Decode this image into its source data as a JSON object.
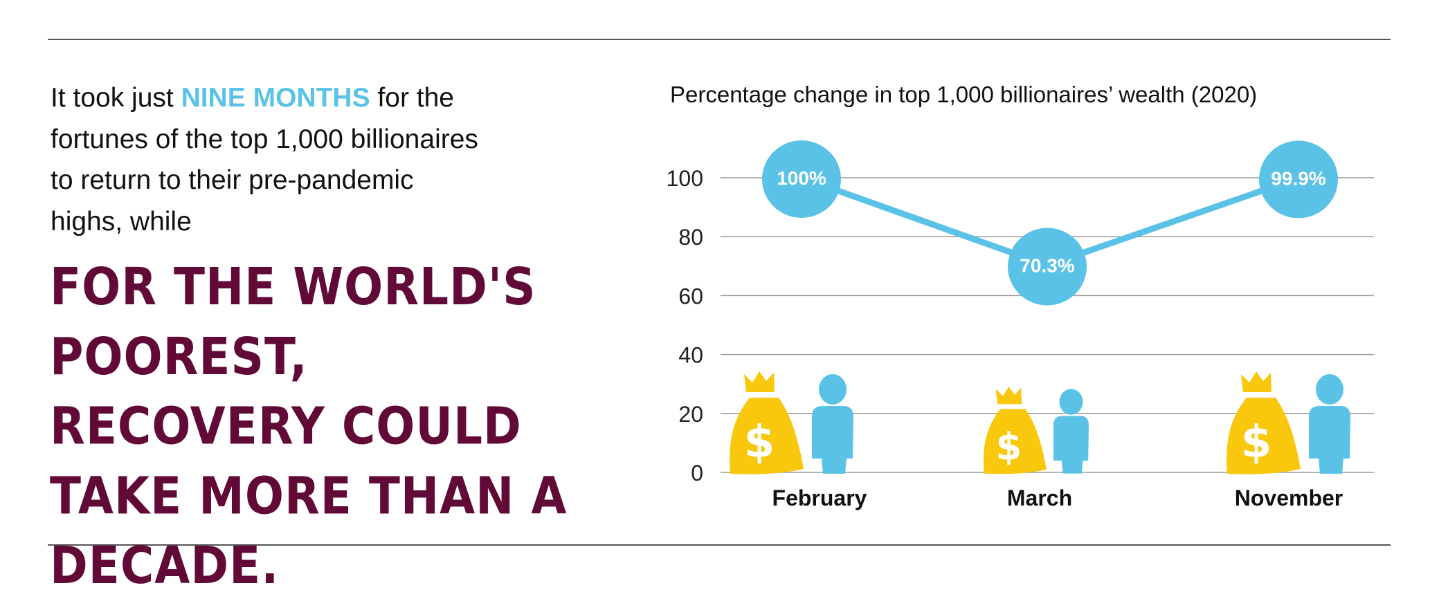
{
  "intro": {
    "before": "It took just ",
    "highlight": "NINE MONTHS",
    "after": " for the fortunes of the top 1,000 billionaires to return to their pre-pandemic highs, while"
  },
  "headline": "For the world's poorest, recovery could take more than a decade.",
  "colors": {
    "accent_blue": "#5BC2E7",
    "headline": "#620A37",
    "money_bag": "#F9C70C",
    "grid": "#9a9a9a"
  },
  "chart_data": {
    "type": "line",
    "title": "Percentage change in top 1,000 billionaires’ wealth (2020)",
    "categories": [
      "February",
      "March",
      "November"
    ],
    "series": [
      {
        "values": [
          100,
          70.3,
          99.9
        ]
      }
    ],
    "data_labels": [
      "100%",
      "70.3%",
      "99.9%"
    ],
    "ylim": [
      0,
      100
    ],
    "yticks": [
      0,
      20,
      40,
      60,
      80,
      100
    ],
    "grid": true,
    "icons": [
      "money-bag-icon",
      "person-icon"
    ]
  }
}
